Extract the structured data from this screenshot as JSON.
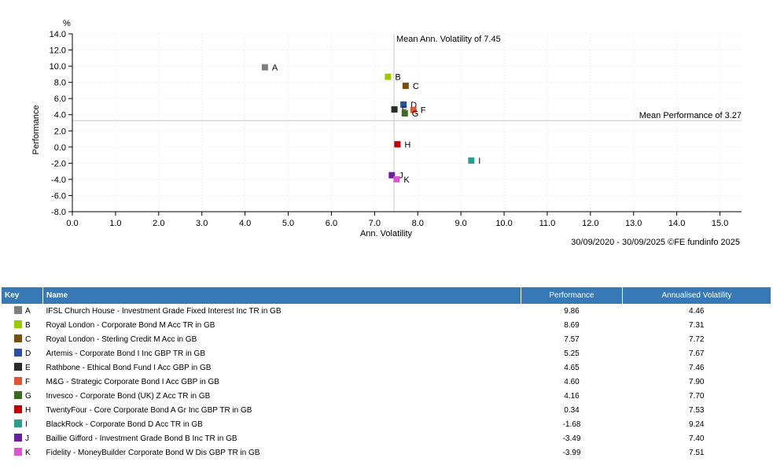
{
  "chart_data": {
    "type": "scatter",
    "title": "",
    "xlabel": "Ann. Volatility",
    "ylabel": "Performance",
    "yunit": "%",
    "xlim": [
      0,
      15.5
    ],
    "ylim": [
      -8,
      14
    ],
    "xticks": [
      "0.0",
      "1.0",
      "2.0",
      "3.0",
      "4.0",
      "5.0",
      "6.0",
      "7.0",
      "8.0",
      "9.0",
      "10.0",
      "11.0",
      "12.0",
      "13.0",
      "14.0",
      "15.0"
    ],
    "yticks": [
      "14.0",
      "12.0",
      "10.0",
      "8.0",
      "6.0",
      "4.0",
      "2.0",
      "0.0",
      "-2.0",
      "-4.0",
      "-6.0",
      "-8.0"
    ],
    "grid": true,
    "reference_lines": {
      "mean_volatility": {
        "value": 7.45,
        "label": "Mean Ann. Volatility of 7.45"
      },
      "mean_performance": {
        "value": 3.27,
        "label": "Mean Performance of 3.27"
      }
    },
    "points": [
      {
        "key": "A",
        "x": 4.46,
        "y": 9.86,
        "color": "#7f7f7f"
      },
      {
        "key": "B",
        "x": 7.31,
        "y": 8.69,
        "color": "#99cc00"
      },
      {
        "key": "C",
        "x": 7.72,
        "y": 7.57,
        "color": "#7a4f0e"
      },
      {
        "key": "D",
        "x": 7.67,
        "y": 5.25,
        "color": "#2b4fa6"
      },
      {
        "key": "E",
        "x": 7.46,
        "y": 4.65,
        "color": "#2b2b2b"
      },
      {
        "key": "F",
        "x": 7.9,
        "y": 4.6,
        "color": "#e05432"
      },
      {
        "key": "G",
        "x": 7.7,
        "y": 4.16,
        "color": "#3a6b1e"
      },
      {
        "key": "H",
        "x": 7.53,
        "y": 0.34,
        "color": "#c00000"
      },
      {
        "key": "I",
        "x": 9.24,
        "y": -1.68,
        "color": "#2a9d8f"
      },
      {
        "key": "J",
        "x": 7.4,
        "y": -3.49,
        "color": "#6a1fa3"
      },
      {
        "key": "K",
        "x": 7.51,
        "y": -3.99,
        "color": "#dd55cc"
      }
    ]
  },
  "footnote": "30/09/2020 - 30/09/2025 ©FE fundinfo 2025",
  "table": {
    "headers": {
      "key": "Key",
      "name": "Name",
      "performance": "Performance",
      "volatility": "Annualised Volatility"
    },
    "rows": [
      {
        "key": "A",
        "name": "IFSL Church House - Investment Grade Fixed Interest Inc TR in GB",
        "performance": "9.86",
        "volatility": "4.46",
        "color": "#7f7f7f"
      },
      {
        "key": "B",
        "name": "Royal London - Corporate Bond M Acc TR in GB",
        "performance": "8.69",
        "volatility": "7.31",
        "color": "#99cc00"
      },
      {
        "key": "C",
        "name": "Royal London - Sterling Credit M Acc in GB",
        "performance": "7.57",
        "volatility": "7.72",
        "color": "#7a4f0e"
      },
      {
        "key": "D",
        "name": "Artemis - Corporate Bond I Inc GBP TR in GB",
        "performance": "5.25",
        "volatility": "7.67",
        "color": "#2b4fa6"
      },
      {
        "key": "E",
        "name": "Rathbone - Ethical Bond Fund I Acc GBP in GB",
        "performance": "4.65",
        "volatility": "7.46",
        "color": "#2b2b2b"
      },
      {
        "key": "F",
        "name": "M&G - Strategic Corporate Bond I Acc GBP in GB",
        "performance": "4.60",
        "volatility": "7.90",
        "color": "#e05432"
      },
      {
        "key": "G",
        "name": "Invesco - Corporate Bond (UK) Z Acc TR in GB",
        "performance": "4.16",
        "volatility": "7.70",
        "color": "#3a6b1e"
      },
      {
        "key": "H",
        "name": "TwentyFour - Core Corporate Bond A Gr Inc GBP TR in GB",
        "performance": "0.34",
        "volatility": "7.53",
        "color": "#c00000"
      },
      {
        "key": "I",
        "name": "BlackRock - Corporate Bond D Acc TR in GB",
        "performance": "-1.68",
        "volatility": "9.24",
        "color": "#2a9d8f"
      },
      {
        "key": "J",
        "name": "Baillie Gifford - Investment Grade Bond B Inc TR in GB",
        "performance": "-3.49",
        "volatility": "7.40",
        "color": "#6a1fa3"
      },
      {
        "key": "K",
        "name": "Fidelity - MoneyBuilder Corporate Bond W Dis GBP TR in GB",
        "performance": "-3.99",
        "volatility": "7.51",
        "color": "#dd55cc"
      }
    ]
  }
}
